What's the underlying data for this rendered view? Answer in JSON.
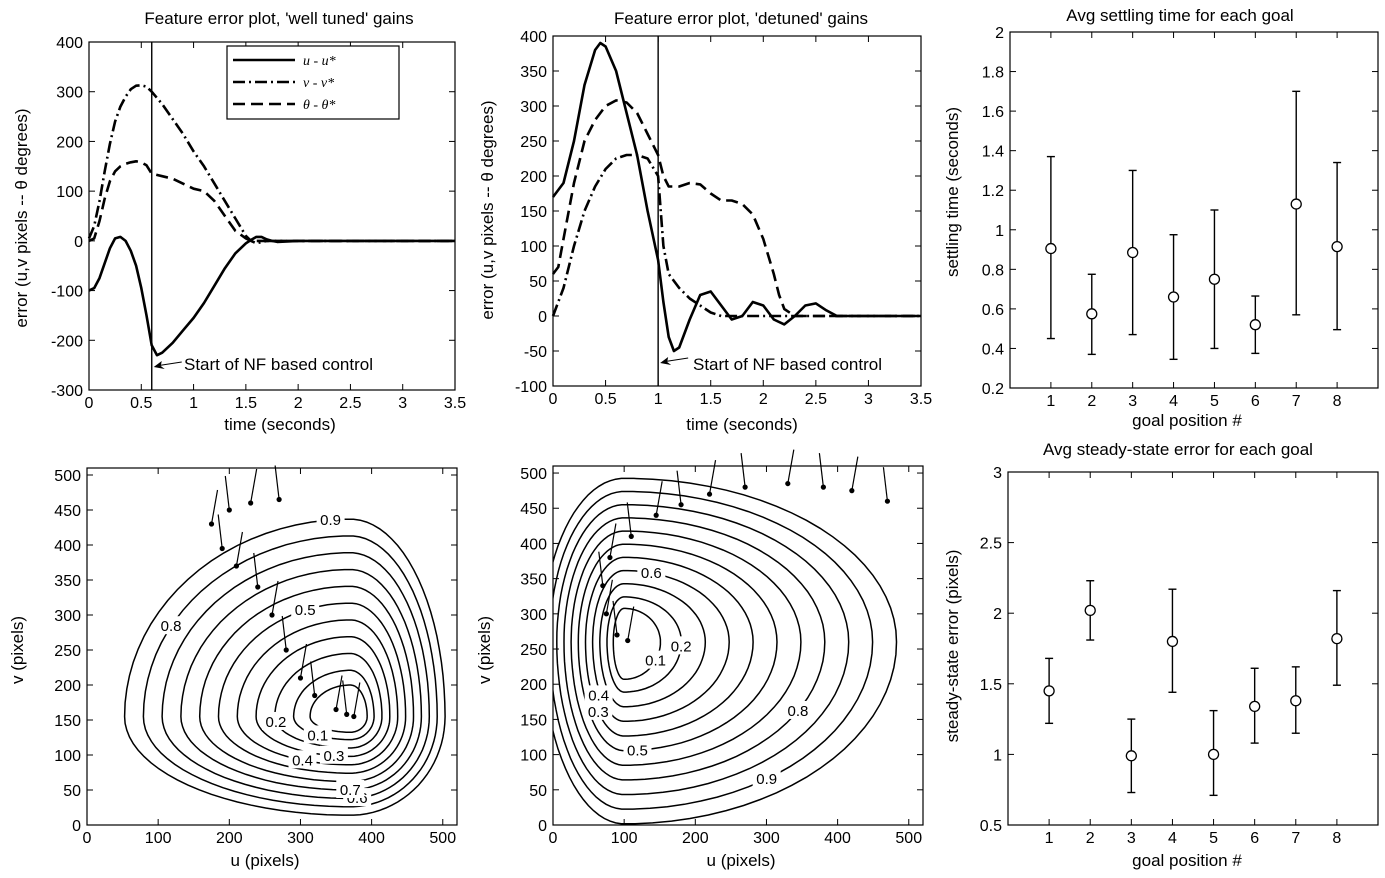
{
  "chart_data": [
    {
      "type": "line",
      "title": "Feature error plot, 'well tuned' gains",
      "xlabel": "time (seconds)",
      "ylabel": "error (u,v  pixels -- θ degrees)",
      "xlim": [
        0,
        3.5
      ],
      "ylim": [
        -300,
        400
      ],
      "xticks": [
        "0",
        "0.5",
        "1",
        "1.5",
        "2",
        "2.5",
        "3",
        "3.5"
      ],
      "yticks": [
        "-300",
        "-200",
        "-100",
        "0",
        "100",
        "200",
        "300",
        "400"
      ],
      "legend": [
        "u - u*",
        "v - v*",
        "θ - θ*"
      ],
      "legend_position": "top",
      "vline_x": 0.6,
      "annotation": "Start of NF based control",
      "series": [
        {
          "name": "u - u*",
          "style": "solid",
          "x": [
            0,
            0.05,
            0.1,
            0.15,
            0.2,
            0.25,
            0.3,
            0.35,
            0.4,
            0.45,
            0.5,
            0.55,
            0.6,
            0.65,
            0.7,
            0.8,
            0.9,
            1.0,
            1.1,
            1.2,
            1.3,
            1.4,
            1.5,
            1.55,
            1.6,
            1.65,
            1.7,
            1.75,
            1.8,
            2.0,
            2.5,
            3.0,
            3.5
          ],
          "y": [
            -100,
            -95,
            -75,
            -45,
            -15,
            5,
            8,
            0,
            -20,
            -50,
            -95,
            -150,
            -210,
            -230,
            -225,
            -205,
            -180,
            -155,
            -125,
            -90,
            -55,
            -25,
            -5,
            2,
            8,
            8,
            3,
            0,
            -2,
            0,
            0,
            0,
            0
          ]
        },
        {
          "name": "v - v*",
          "style": "dashdot",
          "x": [
            0,
            0.05,
            0.1,
            0.15,
            0.2,
            0.25,
            0.3,
            0.35,
            0.4,
            0.45,
            0.5,
            0.55,
            0.6,
            0.7,
            0.8,
            0.9,
            1.0,
            1.1,
            1.2,
            1.3,
            1.4,
            1.5,
            1.55,
            1.6,
            1.7,
            1.8,
            2.0,
            2.5,
            3.0,
            3.5
          ],
          "y": [
            5,
            30,
            80,
            140,
            195,
            240,
            270,
            290,
            305,
            312,
            313,
            310,
            300,
            275,
            245,
            215,
            180,
            150,
            115,
            80,
            45,
            10,
            0,
            -5,
            0,
            0,
            0,
            0,
            0,
            0
          ]
        },
        {
          "name": "θ - θ*",
          "style": "dashed",
          "x": [
            0,
            0.05,
            0.1,
            0.15,
            0.2,
            0.25,
            0.3,
            0.35,
            0.4,
            0.45,
            0.5,
            0.55,
            0.6,
            0.7,
            0.8,
            0.9,
            1.0,
            1.1,
            1.2,
            1.3,
            1.4,
            1.5,
            1.55,
            1.6,
            1.7,
            1.8,
            2.0,
            2.5,
            3.0,
            3.5
          ],
          "y": [
            0,
            5,
            40,
            85,
            120,
            140,
            150,
            155,
            158,
            160,
            158,
            152,
            135,
            130,
            125,
            115,
            105,
            100,
            80,
            50,
            20,
            5,
            0,
            0,
            0,
            0,
            0,
            0,
            0,
            0
          ]
        }
      ]
    },
    {
      "type": "line",
      "title": "Feature error plot, 'detuned' gains",
      "xlabel": "time (seconds)",
      "ylabel": "error (u,v  pixels -- θ degrees)",
      "xlim": [
        0,
        3.5
      ],
      "ylim": [
        -100,
        400
      ],
      "xticks": [
        "0",
        "0.5",
        "1",
        "1.5",
        "2",
        "2.5",
        "3",
        "3.5"
      ],
      "yticks": [
        "-100",
        "-50",
        "0",
        "50",
        "100",
        "150",
        "200",
        "250",
        "300",
        "350",
        "400"
      ],
      "vline_x": 1.0,
      "annotation": "Start of NF based control",
      "series": [
        {
          "style": "solid",
          "x": [
            0,
            0.1,
            0.2,
            0.3,
            0.4,
            0.45,
            0.5,
            0.6,
            0.7,
            0.8,
            0.9,
            1.0,
            1.05,
            1.1,
            1.15,
            1.2,
            1.3,
            1.4,
            1.5,
            1.6,
            1.7,
            1.8,
            1.9,
            2.0,
            2.1,
            2.2,
            2.3,
            2.4,
            2.5,
            2.6,
            2.7,
            3.0,
            3.5
          ],
          "y": [
            170,
            190,
            250,
            330,
            380,
            390,
            385,
            350,
            290,
            230,
            150,
            80,
            20,
            -30,
            -50,
            -45,
            -5,
            30,
            35,
            15,
            -5,
            0,
            20,
            15,
            -5,
            -12,
            0,
            15,
            18,
            8,
            0,
            0,
            0
          ]
        },
        {
          "style": "dashdot",
          "x": [
            0,
            0.1,
            0.2,
            0.3,
            0.4,
            0.5,
            0.6,
            0.7,
            0.8,
            0.9,
            1.0,
            1.05,
            1.1,
            1.2,
            1.3,
            1.4,
            1.5,
            1.6,
            1.8,
            2.0,
            2.2,
            2.5,
            3.0,
            3.5
          ],
          "y": [
            0,
            40,
            100,
            150,
            185,
            210,
            225,
            230,
            230,
            225,
            200,
            100,
            60,
            40,
            25,
            15,
            5,
            0,
            0,
            0,
            0,
            0,
            0,
            0
          ]
        },
        {
          "style": "dashed",
          "x": [
            0,
            0.05,
            0.1,
            0.2,
            0.3,
            0.4,
            0.5,
            0.6,
            0.7,
            0.8,
            0.9,
            1.0,
            1.05,
            1.1,
            1.2,
            1.3,
            1.4,
            1.5,
            1.6,
            1.7,
            1.8,
            1.9,
            2.0,
            2.1,
            2.15,
            2.2,
            2.3,
            2.5,
            3.0,
            3.5
          ],
          "y": [
            60,
            70,
            110,
            190,
            250,
            280,
            300,
            308,
            305,
            290,
            260,
            230,
            200,
            185,
            185,
            190,
            188,
            175,
            165,
            165,
            160,
            145,
            110,
            60,
            30,
            10,
            0,
            0,
            0,
            0
          ]
        }
      ]
    },
    {
      "type": "scatter",
      "title": "Avg settling time for each goal",
      "xlabel": "goal position #",
      "ylabel": "settling time (seconds)",
      "xlim": [
        0,
        9
      ],
      "ylim": [
        0.2,
        2
      ],
      "xticks": [
        "1",
        "2",
        "3",
        "4",
        "5",
        "6",
        "7",
        "8"
      ],
      "yticks": [
        "0.2",
        "0.4",
        "0.6",
        "0.8",
        "1",
        "1.2",
        "1.4",
        "1.6",
        "1.8",
        "2"
      ],
      "x": [
        1,
        2,
        3,
        4,
        5,
        6,
        7,
        8
      ],
      "y": [
        0.905,
        0.575,
        0.885,
        0.66,
        0.75,
        0.52,
        1.13,
        0.915
      ],
      "err_low": [
        0.45,
        0.37,
        0.47,
        0.345,
        0.4,
        0.375,
        0.57,
        0.495
      ],
      "err_high": [
        1.37,
        0.775,
        1.3,
        0.975,
        1.1,
        0.665,
        1.7,
        1.34
      ]
    },
    {
      "type": "scatter",
      "title": "Avg steady-state error for each goal",
      "xlabel": "goal position #",
      "ylabel": "steady-state error (pixels)",
      "xlim": [
        0,
        9
      ],
      "ylim": [
        0.5,
        3
      ],
      "xticks": [
        "1",
        "2",
        "3",
        "4",
        "5",
        "6",
        "7",
        "8"
      ],
      "yticks": [
        "0.5",
        "1",
        "1.5",
        "2",
        "2.5",
        "3"
      ],
      "x": [
        1,
        2,
        3,
        4,
        5,
        6,
        7,
        8
      ],
      "y": [
        1.45,
        2.02,
        0.99,
        1.8,
        1.0,
        1.34,
        1.38,
        1.82
      ],
      "err_low": [
        1.22,
        1.81,
        0.73,
        1.44,
        0.71,
        1.08,
        1.15,
        1.49
      ],
      "err_high": [
        1.68,
        2.23,
        1.25,
        2.17,
        1.31,
        1.61,
        1.62,
        2.16
      ]
    },
    {
      "type": "contour",
      "xlabel": "u (pixels)",
      "ylabel": "v (pixels)",
      "xlim": [
        0,
        520
      ],
      "ylim": [
        0,
        510
      ],
      "xticks": [
        "0",
        "100",
        "200",
        "300",
        "400",
        "500"
      ],
      "yticks": [
        "0",
        "50",
        "100",
        "150",
        "200",
        "250",
        "300",
        "350",
        "400",
        "450",
        "500"
      ],
      "center": [
        370,
        155
      ],
      "contour_labels": [
        "0.9",
        "0.8",
        "0.5",
        "0.2",
        "0.1",
        "0.4",
        "0.3",
        "0.6",
        "0.7"
      ],
      "trajectory": {
        "x": [
          270,
          230,
          200,
          175,
          190,
          210,
          240,
          260,
          280,
          300,
          320,
          350,
          365,
          375
        ],
        "y": [
          465,
          460,
          450,
          430,
          395,
          370,
          340,
          300,
          250,
          210,
          185,
          165,
          158,
          155
        ]
      }
    },
    {
      "type": "contour",
      "xlabel": "u (pixels)",
      "ylabel": "v (pixels)",
      "xlim": [
        0,
        520
      ],
      "ylim": [
        0,
        510
      ],
      "xticks": [
        "0",
        "100",
        "200",
        "300",
        "400",
        "500"
      ],
      "yticks": [
        "0",
        "50",
        "100",
        "150",
        "200",
        "250",
        "300",
        "350",
        "400",
        "450",
        "500"
      ],
      "center": [
        100,
        260
      ],
      "contour_labels": [
        "0.6",
        "0.1",
        "0.2",
        "0.8",
        "0.4",
        "0.3",
        "0.5",
        "0.9"
      ],
      "trajectory": {
        "x": [
          470,
          420,
          380,
          330,
          270,
          220,
          180,
          145,
          110,
          80,
          70,
          75,
          90,
          105
        ],
        "y": [
          460,
          475,
          480,
          485,
          480,
          470,
          455,
          440,
          410,
          380,
          340,
          300,
          270,
          262
        ]
      }
    }
  ]
}
